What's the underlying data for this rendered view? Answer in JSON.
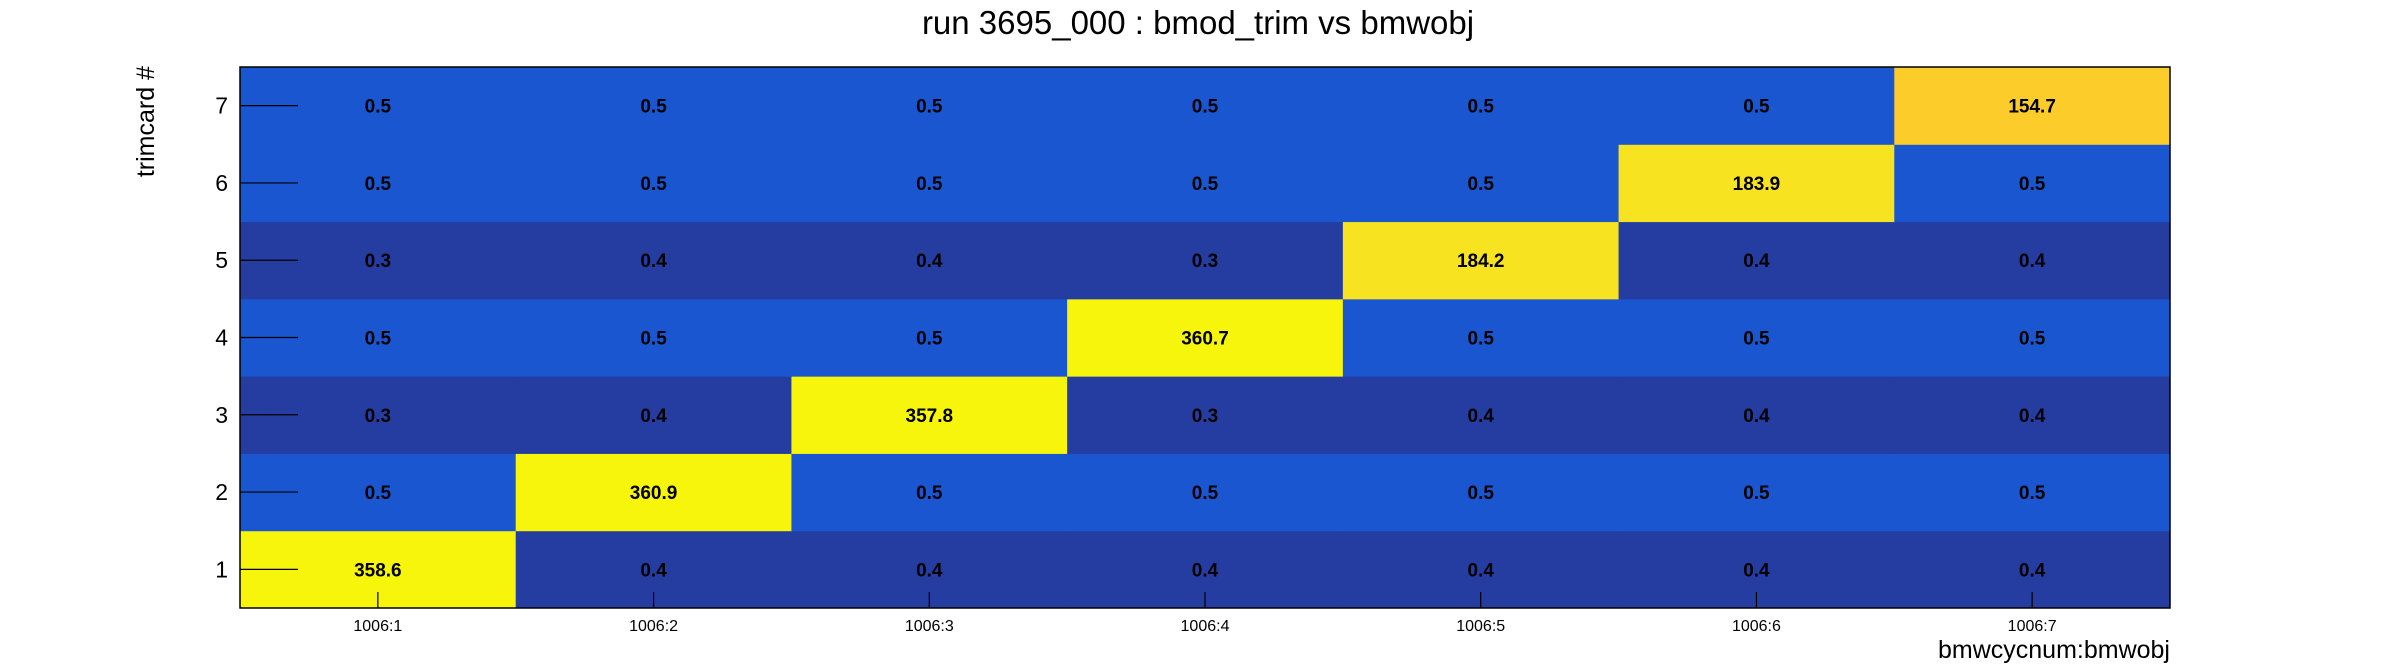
{
  "chart_data": {
    "type": "heatmap",
    "title": "run 3695_000 : bmod_trim vs bmwobj",
    "xlabel": "bmwcycnum:bmwobj",
    "ylabel": "trimcard #",
    "x_categories": [
      "1006:1",
      "1006:2",
      "1006:3",
      "1006:4",
      "1006:5",
      "1006:6",
      "1006:7"
    ],
    "y_categories": [
      "1",
      "2",
      "3",
      "4",
      "5",
      "6",
      "7"
    ],
    "values": [
      [
        358.6,
        0.4,
        0.4,
        0.4,
        0.4,
        0.4,
        0.4
      ],
      [
        0.5,
        360.9,
        0.5,
        0.5,
        0.5,
        0.5,
        0.5
      ],
      [
        0.3,
        0.4,
        357.8,
        0.3,
        0.4,
        0.4,
        0.4
      ],
      [
        0.5,
        0.5,
        0.5,
        360.7,
        0.5,
        0.5,
        0.5
      ],
      [
        0.3,
        0.4,
        0.4,
        0.3,
        184.2,
        0.4,
        0.4
      ],
      [
        0.5,
        0.5,
        0.5,
        0.5,
        0.5,
        183.9,
        0.5
      ],
      [
        0.5,
        0.5,
        0.5,
        0.5,
        0.5,
        0.5,
        154.7
      ]
    ],
    "colors": {
      "low": "#253da1",
      "mid": "#1a56cf",
      "high_a": "#f7f50b",
      "high_b": "#f7e31f",
      "high_c": "#fccd2a"
    }
  }
}
